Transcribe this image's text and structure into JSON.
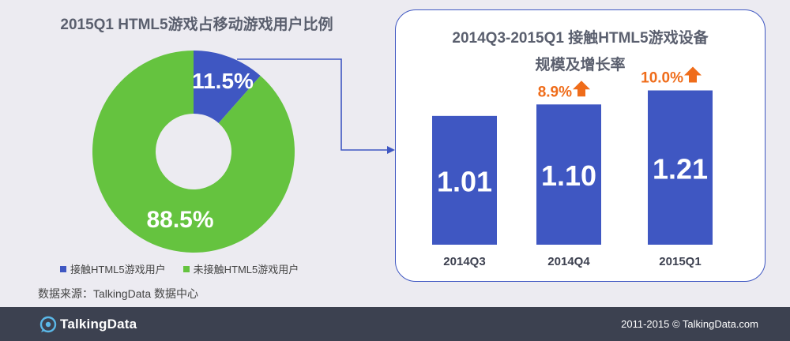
{
  "left_chart_title": "2015Q1 HTML5游戏占移动游戏用户比例",
  "right_chart_title_line1": "2014Q3-2015Q1 接触HTML5游戏设备",
  "right_chart_title_line2": "规模及增长率",
  "source": "数据来源：TalkingData 数据中心",
  "footer": {
    "brand": "TalkingData",
    "copyright": "2011-2015 © TalkingData.com"
  },
  "colors": {
    "blue": "#3f57c2",
    "green": "#65c33f",
    "orange": "#ef6c1a"
  },
  "chart_data": [
    {
      "type": "pie",
      "variant": "donut",
      "title": "2015Q1 HTML5游戏占移动游戏用户比例",
      "slices": [
        {
          "name": "接触HTML5游戏用户",
          "value": 11.5,
          "label": "11.5%",
          "color": "#3f57c2"
        },
        {
          "name": "未接触HTML5游戏用户",
          "value": 88.5,
          "label": "88.5%",
          "color": "#65c33f"
        }
      ],
      "legend_position": "bottom"
    },
    {
      "type": "bar",
      "title": "2014Q3-2015Q1 接触HTML5游戏设备规模及增长率",
      "categories": [
        "2014Q3",
        "2014Q4",
        "2015Q1"
      ],
      "values": [
        1.01,
        1.1,
        1.21
      ],
      "value_labels": [
        "1.01",
        "1.10",
        "1.21"
      ],
      "growth_labels": [
        "",
        "8.9%",
        "10.0%"
      ],
      "bar_color": "#3f57c2",
      "growth_color": "#ef6c1a",
      "ylim": [
        0,
        1.3
      ],
      "grid": false
    }
  ]
}
